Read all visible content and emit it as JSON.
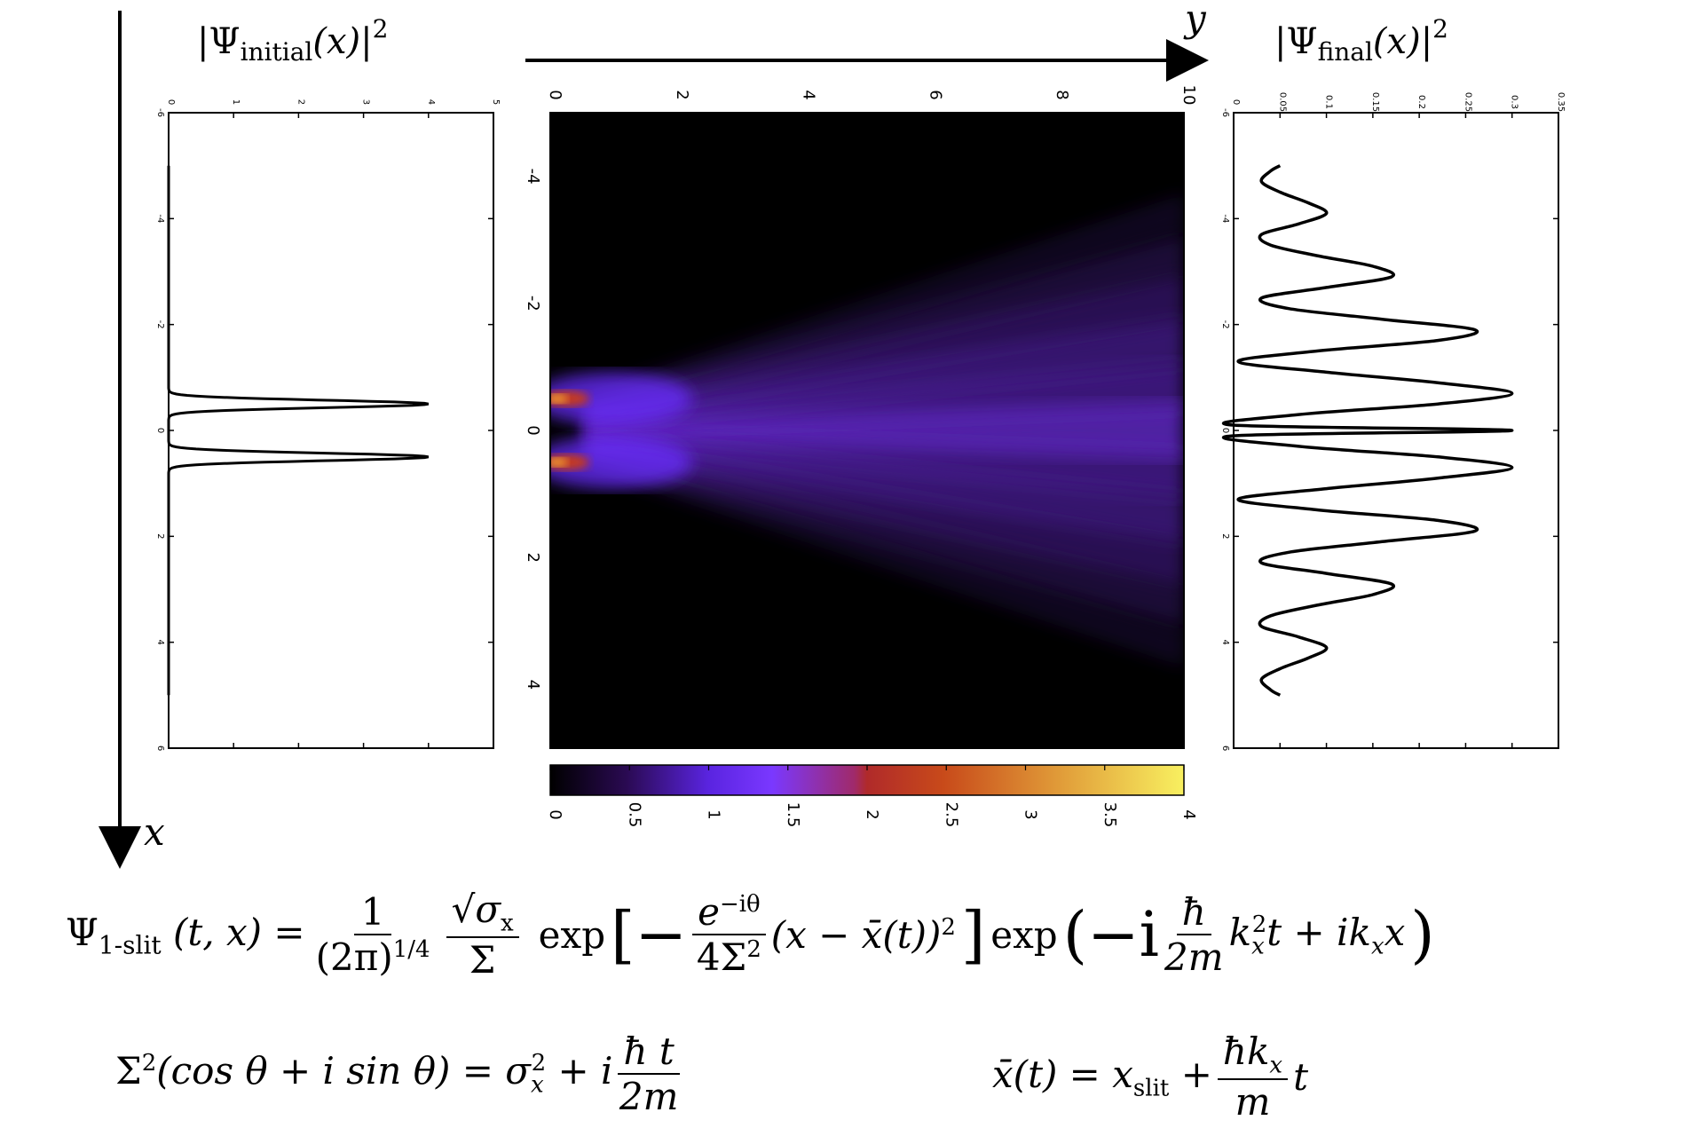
{
  "chart_data": [
    {
      "type": "line",
      "title": "|Ψinitial(x)|²",
      "orientation": "vertical",
      "xlim": [
        -6,
        6
      ],
      "ylim": [
        0,
        5
      ],
      "x_ticks": [
        "-6",
        "-4",
        "-2",
        "0",
        "2",
        "4",
        "6"
      ],
      "y_ticks": [
        "0",
        "1",
        "2",
        "3",
        "4",
        "5"
      ],
      "series": [
        {
          "peaks": [
            {
              "x": -0.5,
              "height": 4.0,
              "width": 0.1
            },
            {
              "x": 0.5,
              "height": 4.0,
              "width": 0.1
            }
          ],
          "extent": [
            -5,
            5
          ]
        }
      ]
    },
    {
      "type": "heatmap",
      "xlabel": "y",
      "ylabel": "x",
      "xlim": [
        0,
        10
      ],
      "ylim": [
        -5,
        5
      ],
      "x_ticks": [
        "0",
        "2",
        "4",
        "6",
        "8",
        "10"
      ],
      "y_ticks": [
        "-4",
        "-2",
        "0",
        "2",
        "4"
      ],
      "colorbar": {
        "range": [
          0,
          4
        ],
        "ticks": [
          "0",
          "0.5",
          "1",
          "1.5",
          "2",
          "2.5",
          "3",
          "3.5",
          "4"
        ],
        "colors": [
          "#000000",
          "#3a0b6e",
          "#6a2bff",
          "#8a3bff",
          "#b02a2a",
          "#c84a1a",
          "#e08a30",
          "#f8f060"
        ]
      },
      "slits": [
        -0.5,
        0.5
      ]
    },
    {
      "type": "line",
      "title": "|Ψfinal(x)|²",
      "orientation": "vertical",
      "xlim": [
        -6,
        6
      ],
      "ylim": [
        0,
        0.35
      ],
      "x_ticks": [
        "-6",
        "-4",
        "-2",
        "0",
        "2",
        "4",
        "6"
      ],
      "y_ticks": [
        "0",
        "0.05",
        "0.1",
        "0.15",
        "0.2",
        "0.25",
        "0.3",
        "0.35"
      ],
      "series": [
        {
          "x": [
            -5,
            -4.9,
            -4.7,
            -4.5,
            -4.3,
            -4.1,
            -3.9,
            -3.7,
            -3.5,
            -3.3,
            -3.1,
            -2.9,
            -2.7,
            -2.5,
            -2.3,
            -2.1,
            -1.9,
            -1.7,
            -1.5,
            -1.3,
            -1.1,
            -0.9,
            -0.7,
            -0.5,
            -0.3,
            -0.1,
            0
          ],
          "y": [
            0.05,
            0.04,
            0.03,
            0.05,
            0.08,
            0.1,
            0.07,
            0.03,
            0.04,
            0.09,
            0.15,
            0.17,
            0.1,
            0.03,
            0.06,
            0.16,
            0.26,
            0.22,
            0.09,
            0.005,
            0.1,
            0.22,
            0.3,
            0.22,
            0.07,
            0.0,
            0.3
          ]
        }
      ]
    }
  ],
  "labels": {
    "initial_title_main": "|Ψ",
    "initial_title_sub": "initial",
    "initial_title_end": "(x)|",
    "initial_title_sup": "2",
    "final_title_main": "|Ψ",
    "final_title_sub": "final",
    "final_title_end": "(x)|",
    "final_title_sup": "2",
    "y_axis": "y",
    "x_axis": "x"
  },
  "equations": {
    "eq1_lhs": "Ψ",
    "eq1_lhs_sub": "1-slit",
    "eq1_lhs_args": "(t, x) =",
    "eq1_frac1_num": "1",
    "eq1_frac1_den": "(2π)",
    "eq1_frac1_den_sup": "1/4",
    "eq1_frac2_num": "√σ",
    "eq1_frac2_num_sub": "x",
    "eq1_frac2_den": "Σ",
    "eq1_exp1": "exp",
    "eq1_bracket_open": "[−",
    "eq1_frac3_num": "e",
    "eq1_frac3_num_sup": "−iθ",
    "eq1_frac3_den": "4Σ",
    "eq1_frac3_den_sup": "2",
    "eq1_term": "(x − x̄(t))",
    "eq1_term_sup": "2",
    "eq1_bracket_close": "]",
    "eq1_exp2": "exp",
    "eq1_paren_open": "(−i",
    "eq1_frac4_num": "ħ",
    "eq1_frac4_den": "2m",
    "eq1_term2": "k",
    "eq1_term2_sub": "x",
    "eq1_term2_sup": "2",
    "eq1_term2_end": "t + ik",
    "eq1_term3_sub": "x",
    "eq1_term3_end": "x",
    "eq1_paren_close": ")",
    "eq2_lhs": "Σ",
    "eq2_lhs_sup": "2",
    "eq2_mid": "(cos θ + i sin θ) = σ",
    "eq2_sub": "x",
    "eq2_sup": "2",
    "eq2_plus": " + i",
    "eq2_frac_num": "ħ t",
    "eq2_frac_den": "2m",
    "eq3_lhs": "x̄(t) = x",
    "eq3_sub": "slit",
    "eq3_plus": " +",
    "eq3_frac_num": "ħk",
    "eq3_frac_num_sub": "x",
    "eq3_frac_den": "m",
    "eq3_end": "t"
  }
}
